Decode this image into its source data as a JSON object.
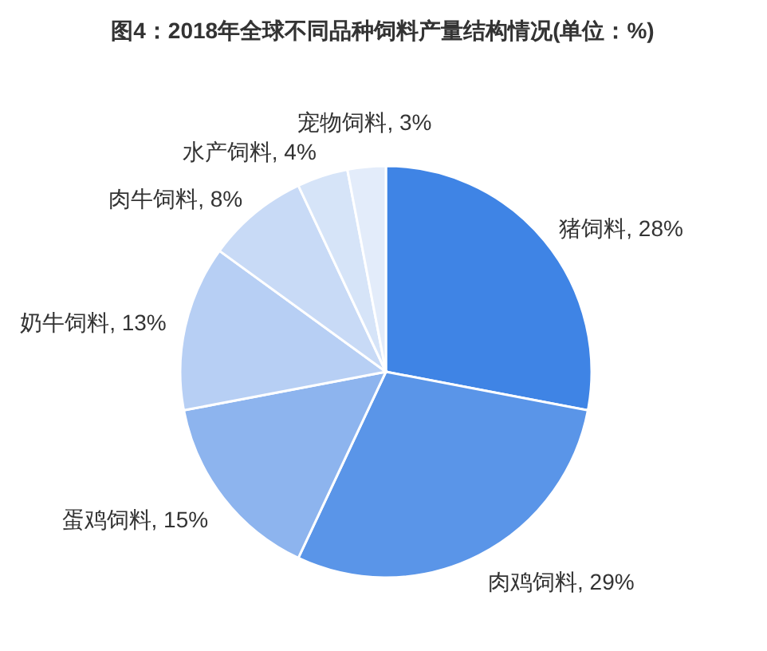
{
  "chart_data": {
    "type": "pie",
    "title": "图4：2018年全球不同品种饲料产量结构情况(单位：%)",
    "categories": [
      "猪饲料",
      "肉鸡饲料",
      "蛋鸡饲料",
      "奶牛饲料",
      "肉牛饲料",
      "水产饲料",
      "宠物饲料"
    ],
    "values": [
      28,
      29,
      15,
      13,
      8,
      4,
      3
    ],
    "value_labels": [
      "28%",
      "29%",
      "15%",
      "13%",
      "8%",
      "4%",
      "3%"
    ],
    "colors": [
      "#3f84e5",
      "#5a95e8",
      "#8db4ee",
      "#b7cff4",
      "#c8daf6",
      "#d6e4f8",
      "#e3ecfa"
    ],
    "legend": false
  }
}
